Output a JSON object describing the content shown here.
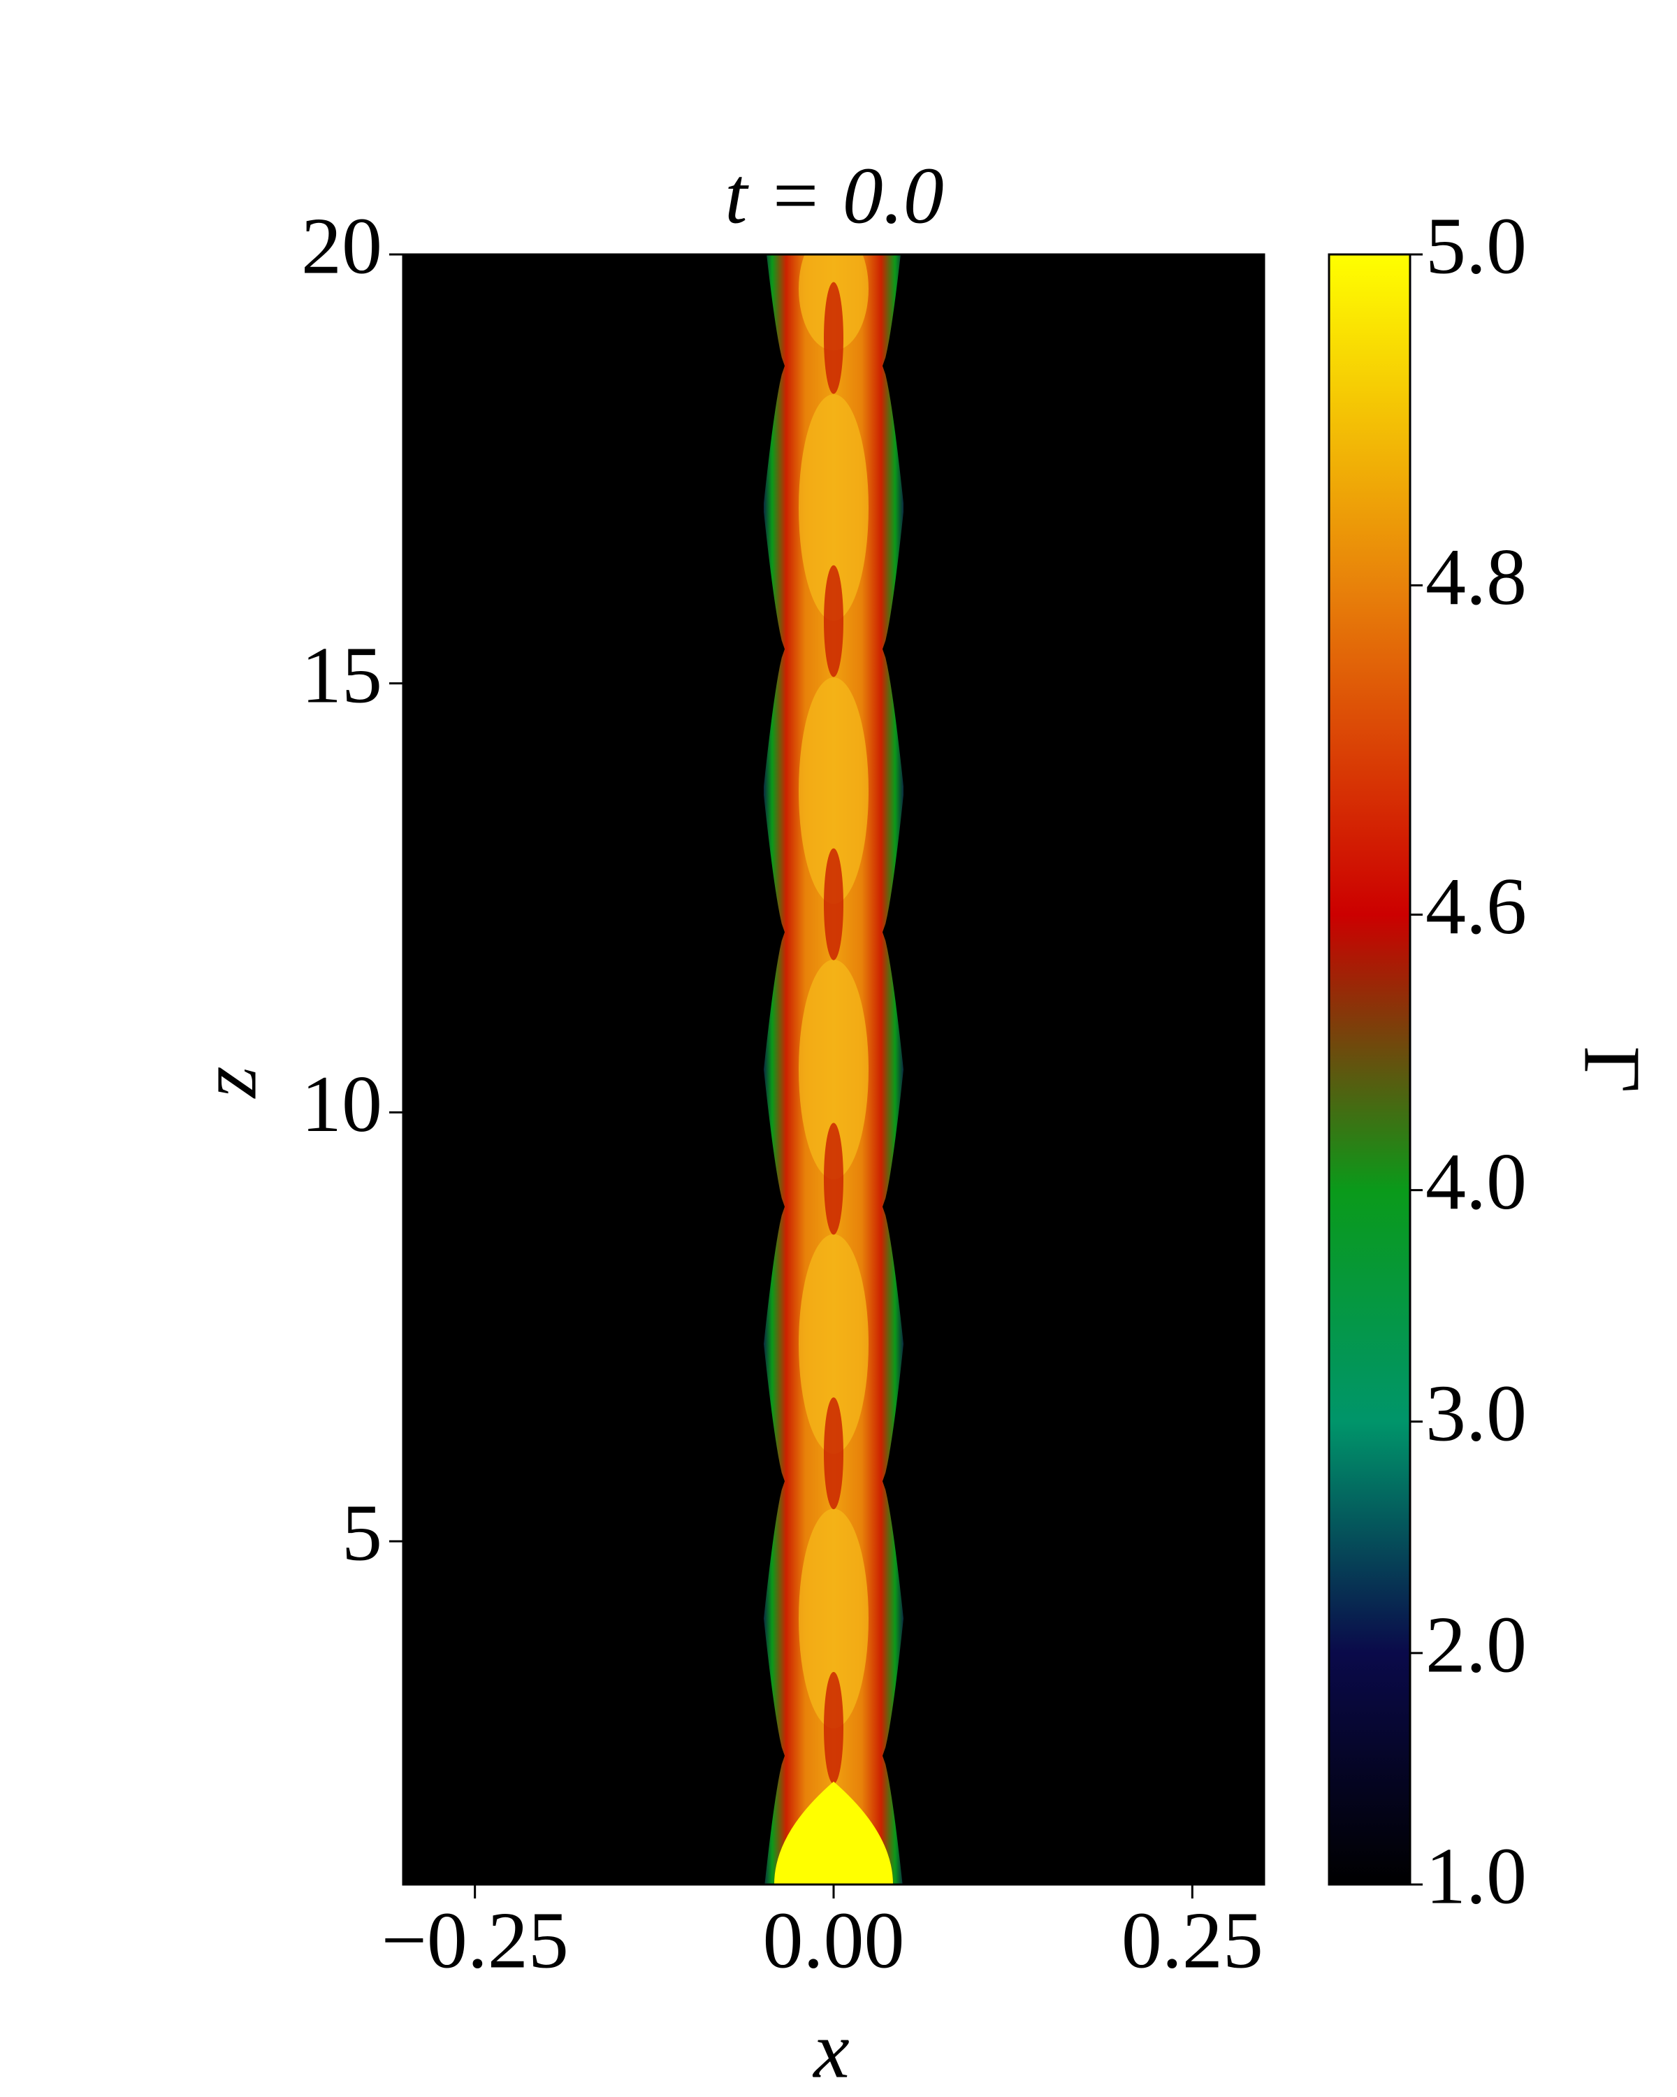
{
  "chart_data": {
    "type": "heatmap",
    "title": "t = 0.0",
    "xlabel": "x",
    "ylabel": "z",
    "xlim": [
      -0.3,
      0.3
    ],
    "ylim": [
      1,
      20
    ],
    "xticks": [
      {
        "value": -0.25,
        "label": "−0.25"
      },
      {
        "value": 0,
        "label": "0.00"
      },
      {
        "value": 0.25,
        "label": "0.25"
      }
    ],
    "yticks": [
      5,
      10,
      15,
      20
    ],
    "colorbar_label": "Γ",
    "colorbar_ticks": [
      {
        "value": 1,
        "label": "1.0"
      },
      {
        "value": 2,
        "label": "2.0"
      },
      {
        "value": 3,
        "label": "3.0"
      },
      {
        "value": 4,
        "label": "4.0"
      },
      {
        "value": 4.6,
        "label": "4.6"
      },
      {
        "value": 4.8,
        "label": "4.8"
      },
      {
        "value": 5,
        "label": "5.0"
      }
    ],
    "colorbar_colors": [
      "#000000",
      "#0a0a4a",
      "#00956a",
      "#0a9a1a",
      "#cc0000",
      "#e8820a",
      "#ffff00"
    ]
  }
}
